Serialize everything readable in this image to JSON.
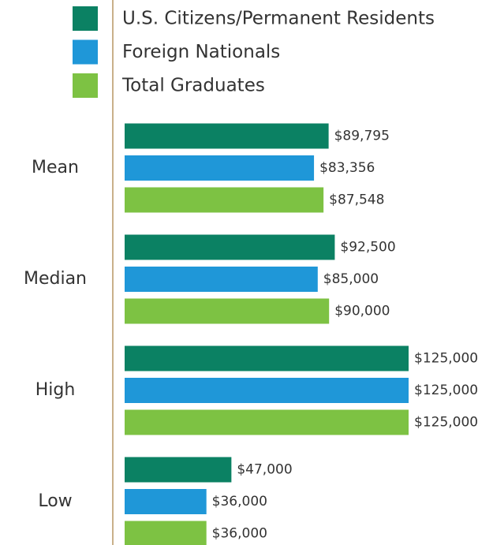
{
  "chart_data": {
    "type": "hbar",
    "categories": [
      "Mean",
      "Median",
      "High",
      "Low"
    ],
    "series": [
      {
        "name": "U.S. Citizens/Permanent Residents",
        "color": "#0b8163",
        "values": [
          89795,
          92500,
          125000,
          47000
        ],
        "value_labels": [
          "$89,795",
          "$92,500",
          "$125,000",
          "$47,000"
        ]
      },
      {
        "name": "Foreign Nationals",
        "color": "#1f97d8",
        "values": [
          83356,
          85000,
          125000,
          36000
        ],
        "value_labels": [
          "$83,356",
          "$85,000",
          "$125,000",
          "$36,000"
        ]
      },
      {
        "name": "Total Graduates",
        "color": "#7dc243",
        "values": [
          87548,
          90000,
          125000,
          36000
        ],
        "value_labels": [
          "$87,548",
          "$90,000",
          "$125,000",
          "$36,000"
        ]
      }
    ],
    "legend": "top"
  }
}
